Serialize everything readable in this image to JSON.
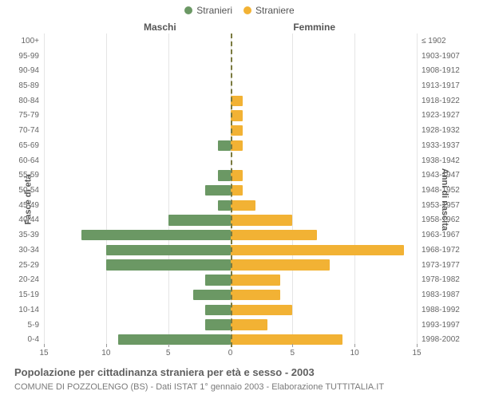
{
  "legend": {
    "male": {
      "label": "Stranieri",
      "color": "#6b9864"
    },
    "female": {
      "label": "Straniere",
      "color": "#f2b234"
    }
  },
  "subhead": {
    "left": "Maschi",
    "right": "Femmine"
  },
  "y_title_left": "Fasce di età",
  "y_title_right": "Anni di nascita",
  "title": "Popolazione per cittadinanza straniera per età e sesso - 2003",
  "subtitle": "COMUNE DI POZZOLENGO (BS) - Dati ISTAT 1° gennaio 2003 - Elaborazione TUTTITALIA.IT",
  "x_axis": {
    "max": 15,
    "ticks_left": [
      15,
      10,
      5,
      0
    ],
    "ticks_right": [
      0,
      5,
      10,
      15
    ]
  },
  "grid_color": "#e5e5e5",
  "center_line_color": "#7a7a3f",
  "bars": {
    "male_color": "#6b9864",
    "female_color": "#f2b234"
  },
  "rows": [
    {
      "age": "100+",
      "birth": "≤ 1902",
      "m": 0,
      "f": 0
    },
    {
      "age": "95-99",
      "birth": "1903-1907",
      "m": 0,
      "f": 0
    },
    {
      "age": "90-94",
      "birth": "1908-1912",
      "m": 0,
      "f": 0
    },
    {
      "age": "85-89",
      "birth": "1913-1917",
      "m": 0,
      "f": 0
    },
    {
      "age": "80-84",
      "birth": "1918-1922",
      "m": 0,
      "f": 1
    },
    {
      "age": "75-79",
      "birth": "1923-1927",
      "m": 0,
      "f": 1
    },
    {
      "age": "70-74",
      "birth": "1928-1932",
      "m": 0,
      "f": 1
    },
    {
      "age": "65-69",
      "birth": "1933-1937",
      "m": 1,
      "f": 1
    },
    {
      "age": "60-64",
      "birth": "1938-1942",
      "m": 0,
      "f": 0
    },
    {
      "age": "55-59",
      "birth": "1943-1947",
      "m": 1,
      "f": 1
    },
    {
      "age": "50-54",
      "birth": "1948-1952",
      "m": 2,
      "f": 1
    },
    {
      "age": "45-49",
      "birth": "1953-1957",
      "m": 1,
      "f": 2
    },
    {
      "age": "40-44",
      "birth": "1958-1962",
      "m": 5,
      "f": 5
    },
    {
      "age": "35-39",
      "birth": "1963-1967",
      "m": 12,
      "f": 7
    },
    {
      "age": "30-34",
      "birth": "1968-1972",
      "m": 10,
      "f": 14
    },
    {
      "age": "25-29",
      "birth": "1973-1977",
      "m": 10,
      "f": 8
    },
    {
      "age": "20-24",
      "birth": "1978-1982",
      "m": 2,
      "f": 4
    },
    {
      "age": "15-19",
      "birth": "1983-1987",
      "m": 3,
      "f": 4
    },
    {
      "age": "10-14",
      "birth": "1988-1992",
      "m": 2,
      "f": 5
    },
    {
      "age": "5-9",
      "birth": "1993-1997",
      "m": 2,
      "f": 3
    },
    {
      "age": "0-4",
      "birth": "1998-2002",
      "m": 9,
      "f": 9
    }
  ]
}
